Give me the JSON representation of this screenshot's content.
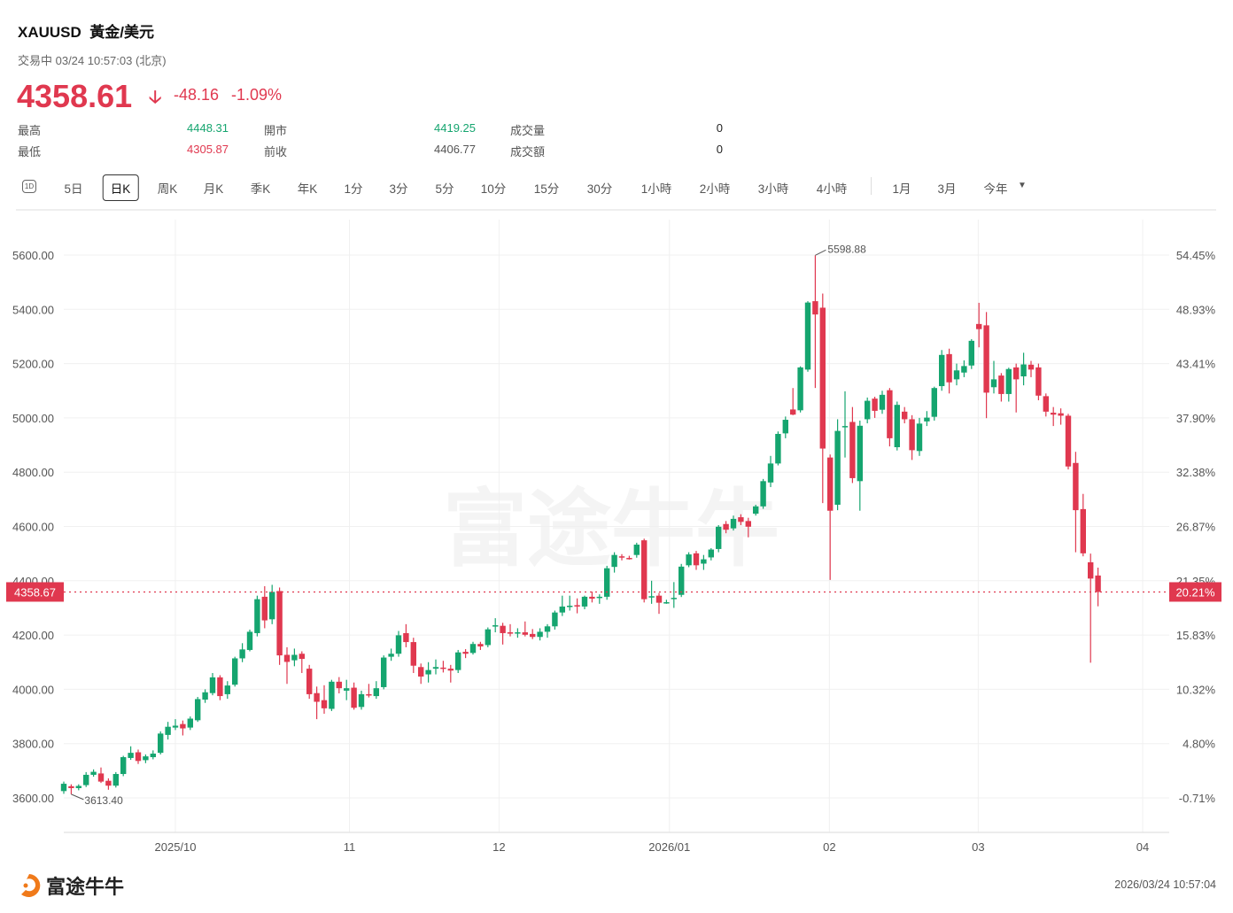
{
  "header": {
    "symbol": "XAUUSD",
    "name": "黃金/美元",
    "status": "交易中 03/24 10:57:03 (北京)",
    "price": "4358.61",
    "change": "-48.16",
    "change_pct": "-1.09%",
    "direction_icon": "arrow-down-icon"
  },
  "stats": [
    {
      "label": "最高",
      "value": "4448.31",
      "tone": "green"
    },
    {
      "label": "開市",
      "value": "4419.25",
      "tone": "green"
    },
    {
      "label": "成交量",
      "value": "0",
      "tone": "dark"
    },
    {
      "label": "最低",
      "value": "4305.87",
      "tone": "red"
    },
    {
      "label": "前收",
      "value": "4406.77",
      "tone": "gray"
    },
    {
      "label": "成交額",
      "value": "0",
      "tone": "dark"
    }
  ],
  "toolbar": {
    "icon_1d": "1D",
    "items": [
      "5日",
      "日K",
      "周K",
      "月K",
      "季K",
      "年K",
      "1分",
      "3分",
      "5分",
      "10分",
      "15分",
      "30分",
      "1小時",
      "2小時",
      "3小時",
      "4小時",
      "1月",
      "3月",
      "今年"
    ],
    "selected": "日K"
  },
  "colors": {
    "up": "#15a56f",
    "down": "#e0384f",
    "grid": "#f0f0f0"
  },
  "chart_data": {
    "type": "candlestick",
    "title": "XAUUSD 日K",
    "ylim": [
      3600,
      5600
    ],
    "y_ticks": [
      "5600.00",
      "5400.00",
      "5200.00",
      "5000.00",
      "4800.00",
      "4600.00",
      "4400.00",
      "4200.00",
      "4000.00",
      "3800.00",
      "3600.00"
    ],
    "y_tick_values": [
      5600,
      5400,
      5200,
      5000,
      4800,
      4600,
      4400,
      4200,
      4000,
      3800,
      3600
    ],
    "pct_ticks": [
      "54.45%",
      "48.93%",
      "43.41%",
      "37.90%",
      "32.38%",
      "26.87%",
      "21.35%",
      "15.83%",
      "10.32%",
      "4.80%",
      "-0.71%"
    ],
    "x_ticks": [
      {
        "label": "2025/10",
        "index": 15
      },
      {
        "label": "11",
        "index": 38.4
      },
      {
        "label": "12",
        "index": 58.5
      },
      {
        "label": "2026/01",
        "index": 81.4
      },
      {
        "label": "02",
        "index": 102.9
      },
      {
        "label": "03",
        "index": 122.9
      },
      {
        "label": "04",
        "index": 145
      }
    ],
    "current_price_label": "4358.67",
    "current_price": 4358.67,
    "current_pct_label": "20.21%",
    "max_label": "5598.88",
    "max_index": 101,
    "min_label": "3613.40",
    "min_index": 1,
    "watermark": "富途牛牛",
    "ohlc": [
      [
        3625,
        3660,
        3615,
        3652
      ],
      [
        3643,
        3650,
        3613.4,
        3636
      ],
      [
        3636,
        3650,
        3628,
        3644
      ],
      [
        3647,
        3695,
        3640,
        3685
      ],
      [
        3685,
        3705,
        3678,
        3696
      ],
      [
        3690,
        3712,
        3655,
        3660
      ],
      [
        3663,
        3672,
        3630,
        3645
      ],
      [
        3645,
        3695,
        3638,
        3688
      ],
      [
        3688,
        3755,
        3680,
        3750
      ],
      [
        3747,
        3790,
        3740,
        3766
      ],
      [
        3768,
        3778,
        3725,
        3736
      ],
      [
        3739,
        3760,
        3728,
        3753
      ],
      [
        3750,
        3775,
        3742,
        3763
      ],
      [
        3766,
        3845,
        3760,
        3837
      ],
      [
        3832,
        3880,
        3815,
        3862
      ],
      [
        3859,
        3890,
        3850,
        3866
      ],
      [
        3872,
        3885,
        3830,
        3856
      ],
      [
        3859,
        3900,
        3850,
        3892
      ],
      [
        3886,
        3972,
        3880,
        3964
      ],
      [
        3962,
        4000,
        3950,
        3989
      ],
      [
        3986,
        4060,
        3978,
        4044
      ],
      [
        4044,
        4052,
        3960,
        3975
      ],
      [
        3982,
        4030,
        3965,
        4014
      ],
      [
        4017,
        4120,
        4010,
        4114
      ],
      [
        4114,
        4170,
        4100,
        4147
      ],
      [
        4145,
        4220,
        4140,
        4212
      ],
      [
        4207,
        4345,
        4195,
        4332
      ],
      [
        4341,
        4380,
        4225,
        4254
      ],
      [
        4258,
        4385,
        4240,
        4359
      ],
      [
        4362,
        4375,
        4090,
        4125
      ],
      [
        4127,
        4155,
        4020,
        4101
      ],
      [
        4107,
        4150,
        4085,
        4127
      ],
      [
        4131,
        4140,
        4060,
        4112
      ],
      [
        4076,
        4090,
        3965,
        3982
      ],
      [
        3986,
        4010,
        3890,
        3954
      ],
      [
        3960,
        4015,
        3910,
        3930
      ],
      [
        3928,
        4035,
        3920,
        4028
      ],
      [
        4028,
        4045,
        3985,
        4004
      ],
      [
        3995,
        4035,
        3960,
        4004
      ],
      [
        4006,
        4025,
        3925,
        3932
      ],
      [
        3935,
        3995,
        3925,
        3982
      ],
      [
        3982,
        4020,
        3970,
        3977
      ],
      [
        3975,
        4030,
        3965,
        4004
      ],
      [
        4008,
        4125,
        4000,
        4117
      ],
      [
        4120,
        4150,
        4105,
        4131
      ],
      [
        4131,
        4215,
        4120,
        4199
      ],
      [
        4207,
        4240,
        4155,
        4174
      ],
      [
        4174,
        4190,
        4060,
        4087
      ],
      [
        4082,
        4095,
        4020,
        4047
      ],
      [
        4055,
        4100,
        4025,
        4071
      ],
      [
        4076,
        4110,
        4055,
        4082
      ],
      [
        4080,
        4105,
        4062,
        4076
      ],
      [
        4076,
        4090,
        4025,
        4069
      ],
      [
        4071,
        4145,
        4060,
        4136
      ],
      [
        4138,
        4148,
        4115,
        4131
      ],
      [
        4134,
        4175,
        4128,
        4167
      ],
      [
        4167,
        4175,
        4145,
        4158
      ],
      [
        4163,
        4228,
        4155,
        4221
      ],
      [
        4232,
        4262,
        4210,
        4236
      ],
      [
        4234,
        4245,
        4165,
        4207
      ],
      [
        4210,
        4240,
        4195,
        4205
      ],
      [
        4207,
        4225,
        4190,
        4210
      ],
      [
        4210,
        4250,
        4195,
        4201
      ],
      [
        4204,
        4222,
        4185,
        4193
      ],
      [
        4193,
        4225,
        4180,
        4212
      ],
      [
        4212,
        4240,
        4190,
        4232
      ],
      [
        4232,
        4290,
        4220,
        4283
      ],
      [
        4283,
        4345,
        4270,
        4305
      ],
      [
        4305,
        4345,
        4290,
        4308
      ],
      [
        4310,
        4335,
        4280,
        4305
      ],
      [
        4305,
        4345,
        4295,
        4341
      ],
      [
        4341,
        4360,
        4320,
        4334
      ],
      [
        4337,
        4350,
        4315,
        4341
      ],
      [
        4341,
        4455,
        4330,
        4446
      ],
      [
        4451,
        4505,
        4430,
        4495
      ],
      [
        4490,
        4498,
        4475,
        4486
      ],
      [
        4484,
        4492,
        4478,
        4482
      ],
      [
        4495,
        4540,
        4485,
        4533
      ],
      [
        4549,
        4555,
        4320,
        4332
      ],
      [
        4341,
        4400,
        4315,
        4343
      ],
      [
        4345,
        4355,
        4278,
        4319
      ],
      [
        4321,
        4330,
        4315,
        4321
      ],
      [
        4334,
        4395,
        4300,
        4337
      ],
      [
        4348,
        4462,
        4340,
        4452
      ],
      [
        4457,
        4505,
        4450,
        4497
      ],
      [
        4501,
        4510,
        4440,
        4457
      ],
      [
        4463,
        4495,
        4440,
        4479
      ],
      [
        4486,
        4520,
        4475,
        4515
      ],
      [
        4517,
        4605,
        4505,
        4599
      ],
      [
        4609,
        4620,
        4575,
        4588
      ],
      [
        4593,
        4640,
        4585,
        4628
      ],
      [
        4634,
        4645,
        4605,
        4617
      ],
      [
        4620,
        4632,
        4560,
        4599
      ],
      [
        4647,
        4680,
        4640,
        4674
      ],
      [
        4674,
        4775,
        4665,
        4767
      ],
      [
        4762,
        4860,
        4745,
        4832
      ],
      [
        4832,
        4950,
        4825,
        4941
      ],
      [
        4943,
        5005,
        4925,
        4993
      ],
      [
        5031,
        5110,
        5010,
        5012
      ],
      [
        5028,
        5190,
        5020,
        5186
      ],
      [
        5178,
        5430,
        5170,
        5425
      ],
      [
        5430,
        5598.88,
        5110,
        5381
      ],
      [
        5406,
        5458,
        4686,
        4887
      ],
      [
        4854,
        4865,
        4403,
        4658
      ],
      [
        4680,
        4995,
        4660,
        4952
      ],
      [
        4968,
        5098,
        4854,
        4970
      ],
      [
        4985,
        5040,
        4760,
        4778
      ],
      [
        4767,
        4990,
        4658,
        4971
      ],
      [
        4995,
        5075,
        4980,
        5063
      ],
      [
        5071,
        5078,
        5000,
        5026
      ],
      [
        5030,
        5100,
        5015,
        5085
      ],
      [
        5102,
        5110,
        4895,
        4925
      ],
      [
        4892,
        5060,
        4880,
        5048
      ],
      [
        5023,
        5040,
        4980,
        4995
      ],
      [
        4995,
        5010,
        4845,
        4881
      ],
      [
        4878,
        5000,
        4860,
        4979
      ],
      [
        4987,
        5025,
        4970,
        5001
      ],
      [
        5004,
        5115,
        4990,
        5110
      ],
      [
        5117,
        5250,
        5100,
        5232
      ],
      [
        5235,
        5255,
        5090,
        5131
      ],
      [
        5142,
        5200,
        5120,
        5175
      ],
      [
        5167,
        5212,
        5150,
        5191
      ],
      [
        5193,
        5290,
        5180,
        5284
      ],
      [
        5346,
        5424,
        5260,
        5327
      ],
      [
        5341,
        5390,
        4999,
        5093
      ],
      [
        5113,
        5210,
        5090,
        5142
      ],
      [
        5156,
        5165,
        5060,
        5088
      ],
      [
        5088,
        5185,
        5060,
        5180
      ],
      [
        5186,
        5200,
        5020,
        5142
      ],
      [
        5153,
        5240,
        5120,
        5197
      ],
      [
        5196,
        5210,
        5150,
        5178
      ],
      [
        5186,
        5200,
        5065,
        5082
      ],
      [
        5080,
        5090,
        5005,
        5023
      ],
      [
        5019,
        5040,
        4970,
        5012
      ],
      [
        5017,
        5035,
        4975,
        5008
      ],
      [
        5008,
        5015,
        4810,
        4821
      ],
      [
        4834,
        4875,
        4505,
        4660
      ],
      [
        4664,
        4720,
        4490,
        4501
      ],
      [
        4468,
        4500,
        4098,
        4408
      ],
      [
        4419.25,
        4448.31,
        4305.87,
        4358.61
      ]
    ]
  },
  "footer": {
    "brand": "富途牛牛",
    "timestamp": "2026/03/24 10:57:04"
  }
}
